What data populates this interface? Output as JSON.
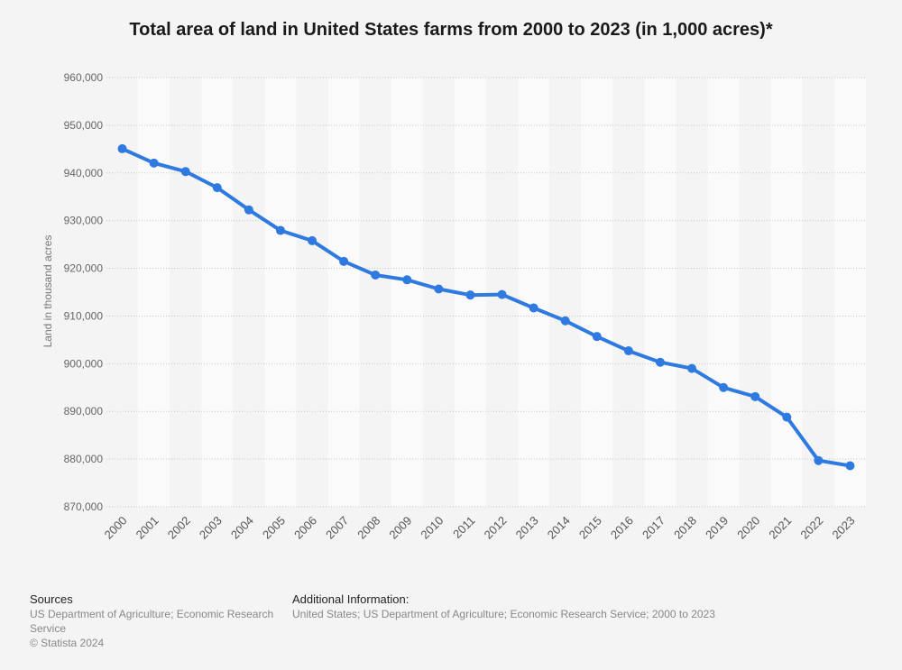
{
  "chart_data": {
    "type": "line",
    "title": "Total area of land in United States farms from 2000 to 2023 (in 1,000 acres)*",
    "ylabel": "Land in thousand acres",
    "xlabel": "",
    "ylim": [
      870000,
      960000
    ],
    "yticks": [
      870000,
      880000,
      890000,
      900000,
      910000,
      920000,
      930000,
      940000,
      950000,
      960000
    ],
    "ytick_labels": [
      "870,000",
      "880,000",
      "890,000",
      "900,000",
      "910,000",
      "920,000",
      "930,000",
      "940,000",
      "950,000",
      "960,000"
    ],
    "categories": [
      "2000",
      "2001",
      "2002",
      "2003",
      "2004",
      "2005",
      "2006",
      "2007",
      "2008",
      "2009",
      "2010",
      "2011",
      "2012",
      "2013",
      "2014",
      "2015",
      "2016",
      "2017",
      "2018",
      "2019",
      "2020",
      "2021",
      "2022",
      "2023"
    ],
    "values": [
      945080,
      942070,
      940300,
      936910,
      932260,
      927940,
      925790,
      921460,
      918600,
      917590,
      915660,
      914400,
      914500,
      911700,
      909000,
      905700,
      902700,
      900300,
      899000,
      895000,
      893100,
      888800,
      879700,
      878600
    ],
    "line_color": "#2f7ae0",
    "grid": true
  },
  "footer": {
    "sources_heading": "Sources",
    "sources_text": "US Department of Agriculture; Economic Research Service",
    "copyright": "© Statista 2024",
    "additional_heading": "Additional Information:",
    "additional_text": "United States; US Department of Agriculture; Economic Research Service; 2000 to 2023"
  }
}
